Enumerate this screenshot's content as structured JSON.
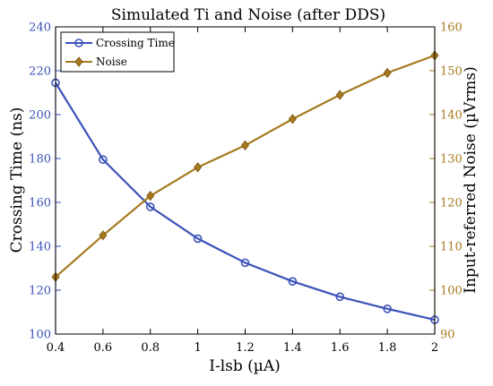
{
  "chart_data": {
    "type": "line",
    "title": "Simulated Ti and Noise (after DDS)",
    "xlabel": "I-lsb (µA)",
    "ylabel_left": "Crossing Time (ns)",
    "ylabel_right": "Input-referred Noise (µVrms)",
    "x": [
      0.4,
      0.6,
      0.8,
      1.0,
      1.2,
      1.4,
      1.6,
      1.8,
      2.0
    ],
    "x_ticks": [
      "0.4",
      "0.6",
      "0.8",
      "1",
      "1.2",
      "1.4",
      "1.6",
      "1.8",
      "2"
    ],
    "xlim": [
      0.4,
      2.0
    ],
    "ylim_left": [
      100,
      240
    ],
    "ylim_right": [
      90,
      160
    ],
    "y_ticks_left": [
      100,
      120,
      140,
      160,
      180,
      200,
      220,
      240
    ],
    "y_ticks_right": [
      90,
      100,
      110,
      120,
      130,
      140,
      150,
      160
    ],
    "grid": false,
    "legend_position": "top-left",
    "series": [
      {
        "name": "Crossing Time",
        "axis": "left",
        "marker": "circle",
        "color": "#3a52b8",
        "values": [
          214.5,
          179.5,
          158.0,
          143.5,
          132.5,
          124.0,
          117.0,
          111.5,
          106.5
        ]
      },
      {
        "name": "Noise",
        "axis": "right",
        "marker": "diamond",
        "color": "#a6791f",
        "values": [
          103.0,
          112.5,
          121.5,
          128.0,
          133.0,
          139.0,
          144.5,
          149.5,
          153.5
        ]
      }
    ],
    "colors": {
      "left_axis": "#3a52b8",
      "right_axis": "#a6791f"
    }
  }
}
